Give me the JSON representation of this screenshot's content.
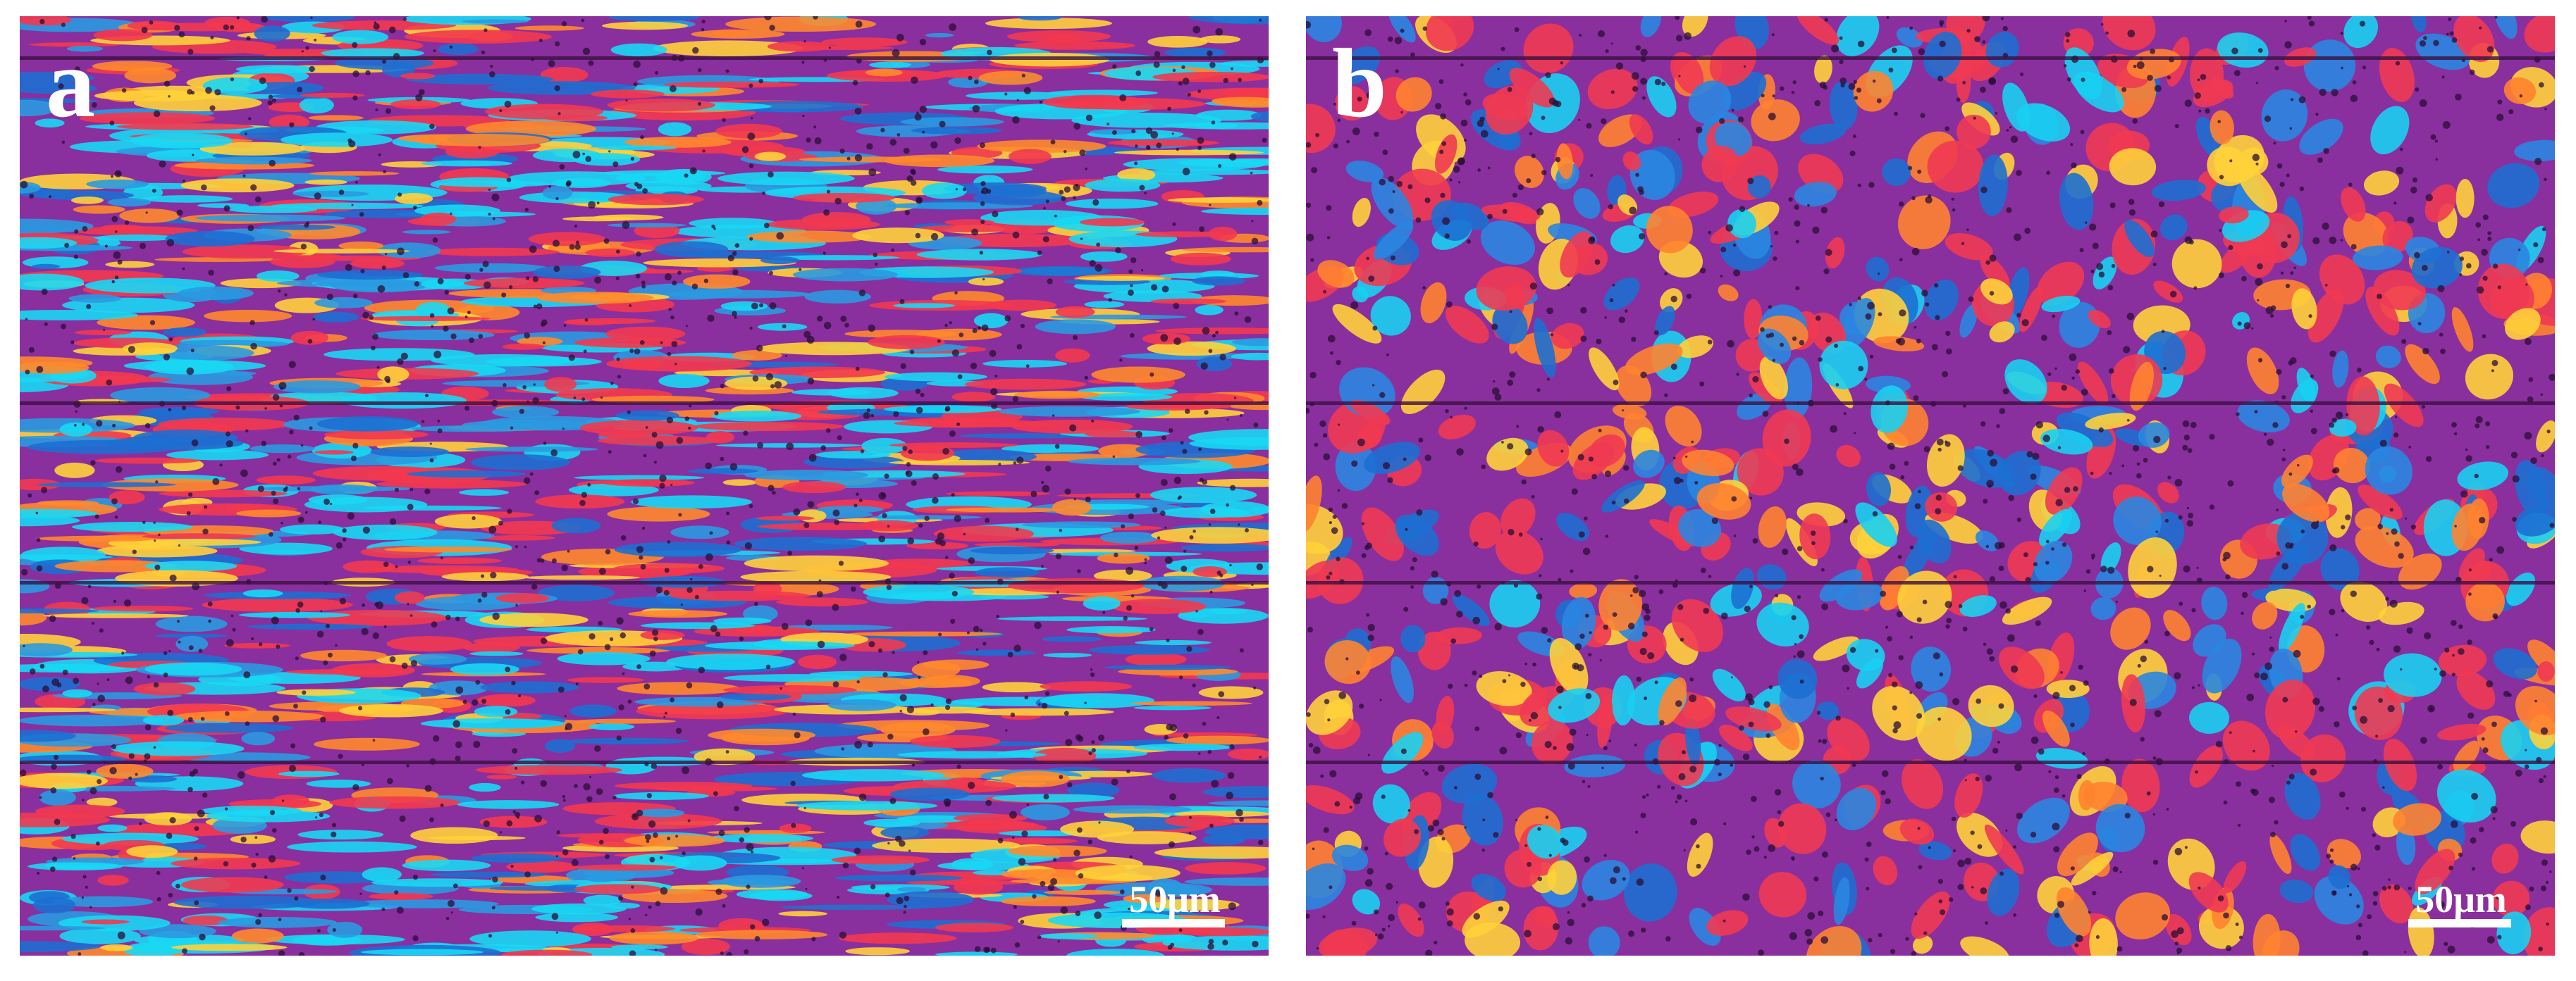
{
  "panels": [
    {
      "label": "a",
      "scale_bar": "50μm"
    },
    {
      "label": "b",
      "scale_bar": "50μm"
    }
  ]
}
